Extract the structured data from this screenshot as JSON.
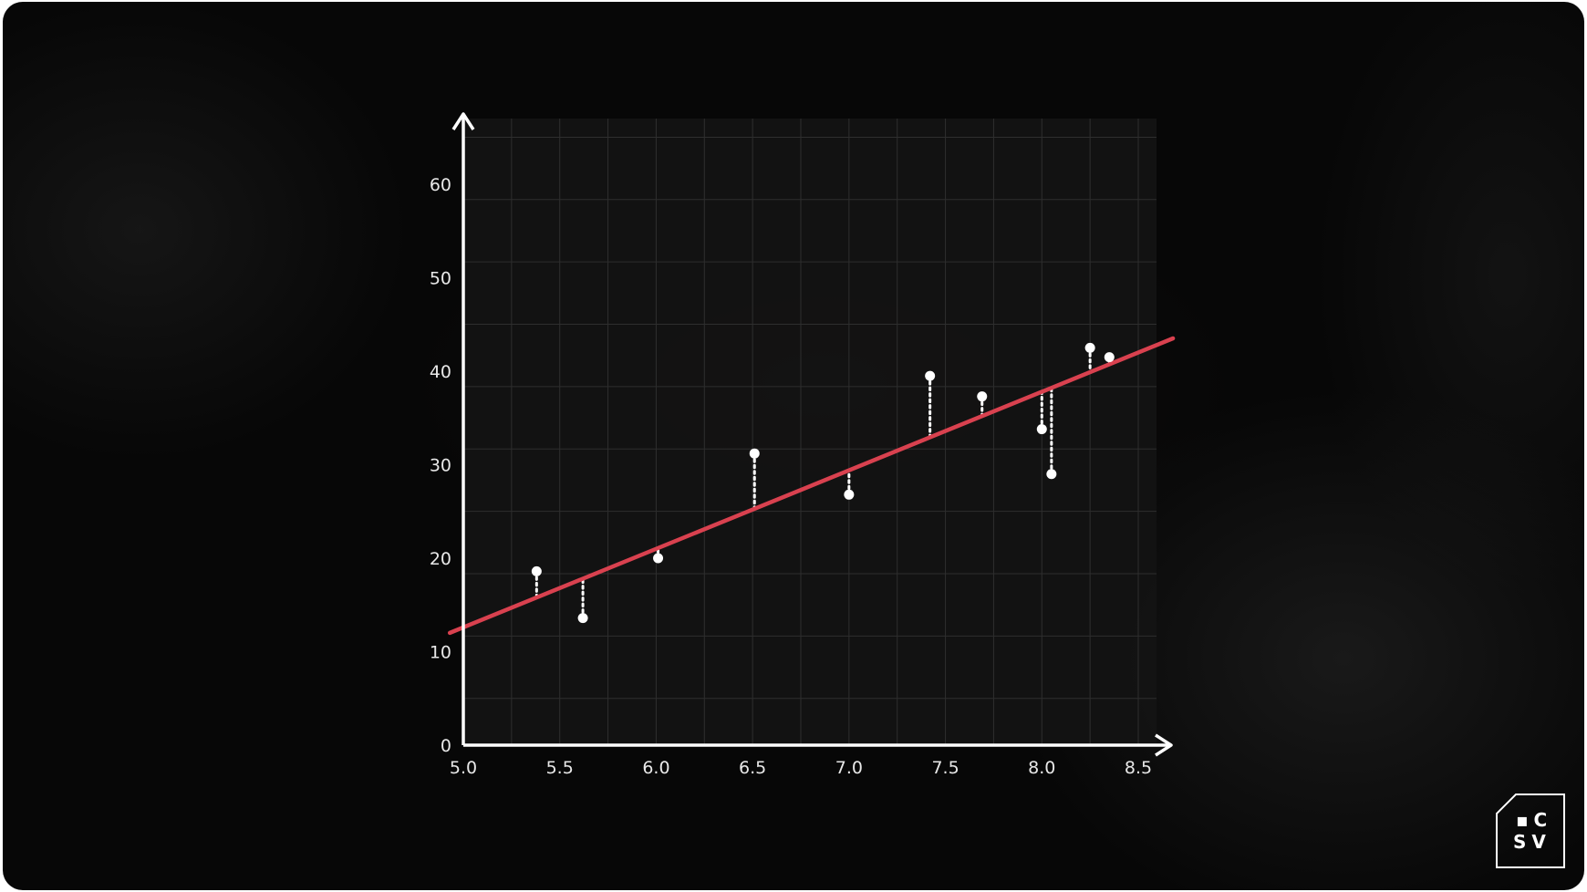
{
  "chart_data": {
    "type": "scatter",
    "title": "",
    "xlabel": "",
    "ylabel": "",
    "xlim": [
      5.0,
      8.5
    ],
    "ylim": [
      0,
      60
    ],
    "x_ticks": [
      "5.0",
      "5.5",
      "6.0",
      "6.5",
      "7.0",
      "7.5",
      "8.0",
      "8.5"
    ],
    "y_ticks": [
      "0",
      "10",
      "20",
      "30",
      "40",
      "50",
      "60"
    ],
    "grid": true,
    "points": [
      {
        "x": 5.38,
        "y": 18.6
      },
      {
        "x": 5.62,
        "y": 13.6
      },
      {
        "x": 6.01,
        "y": 20.0
      },
      {
        "x": 6.51,
        "y": 31.2
      },
      {
        "x": 7.0,
        "y": 26.8
      },
      {
        "x": 7.42,
        "y": 39.5
      },
      {
        "x": 7.69,
        "y": 37.3
      },
      {
        "x": 8.0,
        "y": 33.8
      },
      {
        "x": 8.05,
        "y": 29.0
      },
      {
        "x": 8.25,
        "y": 42.5
      },
      {
        "x": 8.35,
        "y": 41.5
      }
    ],
    "regression_line": {
      "slope": 8.4,
      "intercept": -29.4,
      "color": "#d9414f"
    },
    "residuals_shown": true
  },
  "colors": {
    "background": "#070707",
    "plot_area": "#141414",
    "axis": "#ffffff",
    "grid": "#2e2e2e",
    "point": "#ffffff",
    "fit_line": "#d9414f"
  },
  "logo": {
    "line1": "▪C",
    "line2": "SV"
  }
}
